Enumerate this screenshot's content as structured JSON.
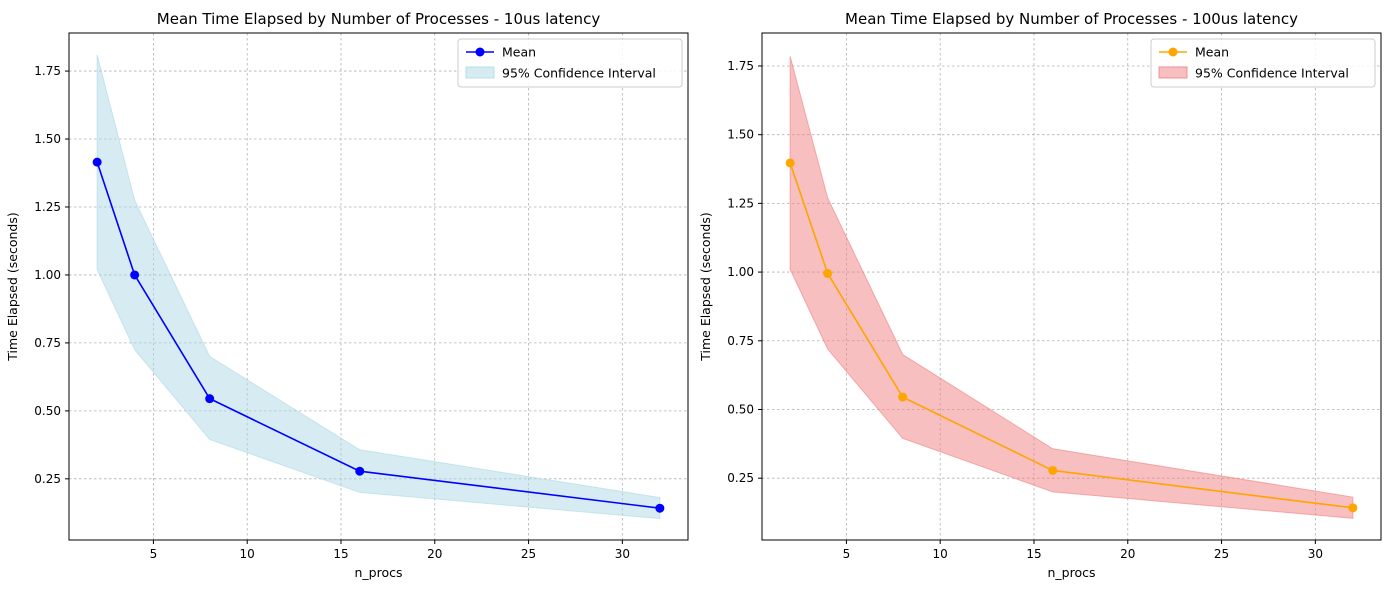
{
  "chart_data": [
    {
      "type": "line",
      "title": "Mean Time Elapsed by Number of Processes - 10us latency",
      "xlabel": "n_procs",
      "ylabel": "Time Elapsed (seconds)",
      "xlim": [
        0.5,
        33.5
      ],
      "ylim": [
        0.025,
        1.89
      ],
      "xticks": [
        5,
        10,
        15,
        20,
        25,
        30
      ],
      "yticks": [
        0.25,
        0.5,
        0.75,
        1.0,
        1.25,
        1.5,
        1.75
      ],
      "xtick_labels": [
        "5",
        "10",
        "15",
        "20",
        "25",
        "30"
      ],
      "ytick_labels": [
        "0.25",
        "0.50",
        "0.75",
        "1.00",
        "1.25",
        "1.50",
        "1.75"
      ],
      "grid": true,
      "legend_position": "top-right",
      "x": [
        2,
        4,
        8,
        16,
        32
      ],
      "series": [
        {
          "name": "Mean",
          "kind": "line",
          "color": "#0000ff",
          "marker": "circle",
          "values": [
            1.415,
            1.0,
            0.545,
            0.278,
            0.142
          ]
        }
      ],
      "band": {
        "name": "95% Confidence Interval",
        "color": "#add8e6",
        "alpha": 0.5,
        "lower": [
          1.02,
          0.725,
          0.395,
          0.2,
          0.104
        ],
        "upper": [
          1.81,
          1.275,
          0.7,
          0.357,
          0.181
        ]
      }
    },
    {
      "type": "line",
      "title": "Mean Time Elapsed by Number of Processes - 100us latency",
      "xlabel": "n_procs",
      "ylabel": "Time Elapsed (seconds)",
      "xlim": [
        0.5,
        33.5
      ],
      "ylim": [
        0.025,
        1.87
      ],
      "xticks": [
        5,
        10,
        15,
        20,
        25,
        30
      ],
      "yticks": [
        0.25,
        0.5,
        0.75,
        1.0,
        1.25,
        1.5,
        1.75
      ],
      "xtick_labels": [
        "5",
        "10",
        "15",
        "20",
        "25",
        "30"
      ],
      "ytick_labels": [
        "0.25",
        "0.50",
        "0.75",
        "1.00",
        "1.25",
        "1.50",
        "1.75"
      ],
      "grid": true,
      "legend_position": "top-right",
      "x": [
        2,
        4,
        8,
        16,
        32
      ],
      "series": [
        {
          "name": "Mean",
          "kind": "line",
          "color": "#ffa500",
          "marker": "circle",
          "values": [
            1.397,
            0.995,
            0.545,
            0.278,
            0.142
          ]
        }
      ],
      "band": {
        "name": "95% Confidence Interval",
        "color": "#f08080",
        "alpha": 0.5,
        "lower": [
          1.01,
          0.72,
          0.395,
          0.2,
          0.104
        ],
        "upper": [
          1.785,
          1.27,
          0.7,
          0.357,
          0.181
        ]
      }
    }
  ]
}
